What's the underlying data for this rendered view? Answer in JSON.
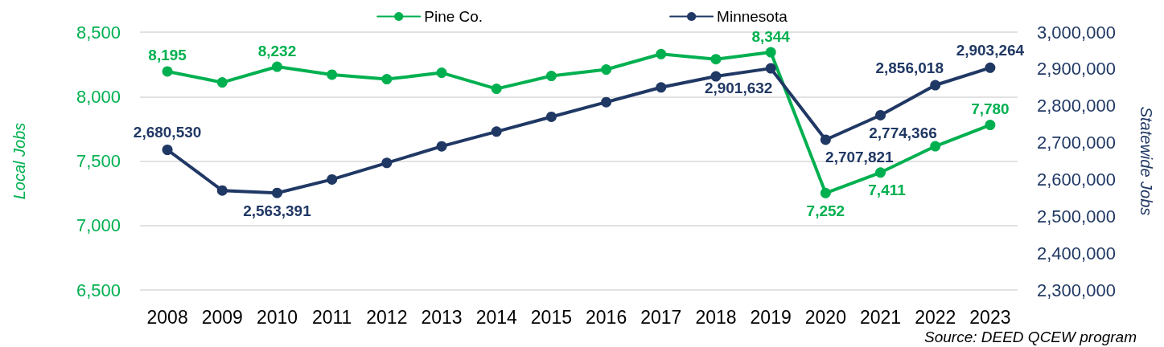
{
  "chart_data": {
    "type": "line",
    "categories": [
      "2008",
      "2009",
      "2010",
      "2011",
      "2012",
      "2013",
      "2014",
      "2015",
      "2016",
      "2017",
      "2018",
      "2019",
      "2020",
      "2021",
      "2022",
      "2023"
    ],
    "ylabel": "Local Jobs",
    "y2label": "Statewide Jobs",
    "annotations": [
      "Source: DEED QCEW program"
    ],
    "series": [
      {
        "name": "Pine Co.",
        "color": "#00b050",
        "values": [
          8195,
          8110,
          8232,
          8170,
          8135,
          8185,
          8060,
          8160,
          8210,
          8330,
          8290,
          8344,
          7252,
          7411,
          7615,
          7780
        ],
        "value_labels": [
          "8,195",
          null,
          "8,232",
          null,
          null,
          null,
          null,
          null,
          null,
          null,
          null,
          "8,344",
          "7,252",
          "7,411",
          null,
          "7,780"
        ]
      },
      {
        "name": "Minnesota",
        "color": "#203864",
        "axis": "y2",
        "values": [
          2680530,
          2570000,
          2563391,
          2600000,
          2645000,
          2690000,
          2730000,
          2770000,
          2810000,
          2850000,
          2880000,
          2901632,
          2707821,
          2774366,
          2856018,
          2903264
        ],
        "value_labels": [
          "2,680,530",
          null,
          "2,563,391",
          null,
          null,
          null,
          null,
          null,
          null,
          null,
          null,
          "2,901,632",
          "2,707,821",
          "2,774,366",
          "2,856,018",
          "2,903,264"
        ]
      }
    ],
    "ylim": [
      6500,
      8500
    ],
    "yticks": [
      {
        "value": 6500,
        "label": "6,500"
      },
      {
        "value": 7000,
        "label": "7,000"
      },
      {
        "value": 7500,
        "label": "7,500"
      },
      {
        "value": 8000,
        "label": "8,000"
      },
      {
        "value": 8500,
        "label": "8,500"
      }
    ],
    "y2lim": [
      2300000,
      3000000
    ],
    "y2ticks": [
      {
        "value": 2300000,
        "label": "2,300,000"
      },
      {
        "value": 2400000,
        "label": "2,400,000"
      },
      {
        "value": 2500000,
        "label": "2,500,000"
      },
      {
        "value": 2600000,
        "label": "2,600,000"
      },
      {
        "value": 2700000,
        "label": "2,700,000"
      },
      {
        "value": 2800000,
        "label": "2,800,000"
      },
      {
        "value": 2900000,
        "label": "2,900,000"
      },
      {
        "value": 3000000,
        "label": "3,000,000"
      }
    ],
    "grid": "y",
    "legend": "top",
    "marker": "circle",
    "line_style": "solid"
  }
}
